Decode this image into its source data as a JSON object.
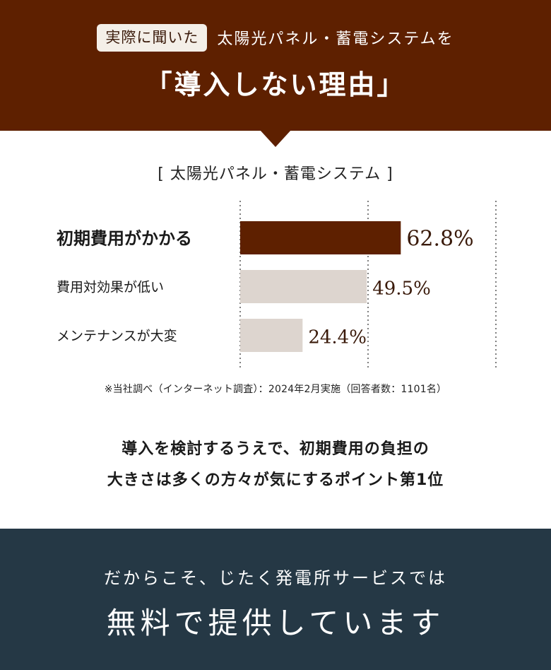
{
  "header": {
    "badge": "実際に聞いた",
    "subtitle": "太陽光パネル・蓄電システムを",
    "title": "「導入しない理由」"
  },
  "chart_data": {
    "type": "bar",
    "orientation": "horizontal",
    "title": "[ 太陽光パネル・蓄電システム ]",
    "categories": [
      "初期費用がかかる",
      "費用対効果が低い",
      "メンテナンスが大変"
    ],
    "values": [
      62.8,
      49.5,
      24.4
    ],
    "value_labels": [
      "62.8%",
      "49.5%",
      "24.4%"
    ],
    "unit": "%",
    "xlim": [
      0,
      100
    ],
    "grid": "vertical dotted lines at 0, 50, 100",
    "highlight_index": 0,
    "colors": {
      "highlight": "#5e2000",
      "normal": "#ddd5cf",
      "label": "#3a1a0a"
    }
  },
  "source_note": "※当社調べ（インターネット調査）：2024年2月実施（回答者数：1101名）",
  "message": {
    "line1": "導入を検討するうえで、初期費用の負担の",
    "line2": "大きさは多くの方々が気にするポイント第1位"
  },
  "footer": {
    "subtitle": "だからこそ、じたく発電所サービスでは",
    "title": "無料で提供しています"
  },
  "colors": {
    "header_bg": "#5e2000",
    "footer_bg": "#253845"
  }
}
